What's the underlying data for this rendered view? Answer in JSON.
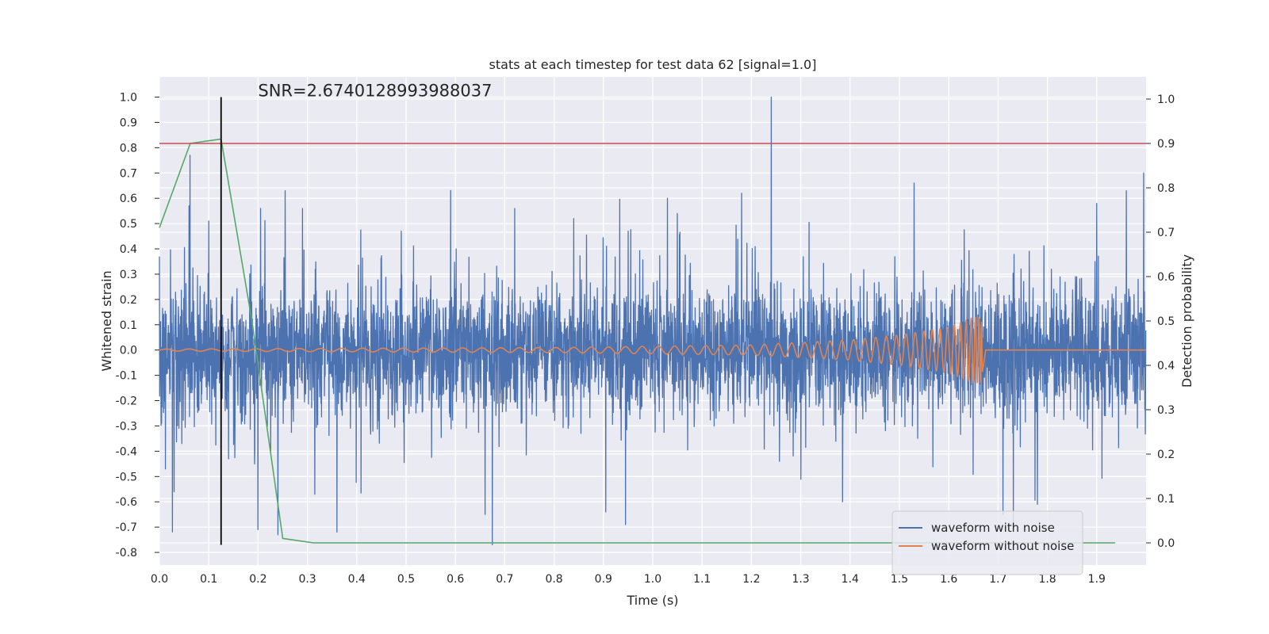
{
  "chart_data": {
    "type": "line",
    "title": "stats at each timestep for test data 62 [signal=1.0]",
    "xlabel": "Time (s)",
    "ylabel": "Whitened strain",
    "y2label": "Detection probability",
    "annotation": "SNR=2.6740128993988037",
    "xlim": [
      0.0,
      2.0
    ],
    "ylim": [
      -0.85,
      1.08
    ],
    "y2lim": [
      -0.05,
      1.05
    ],
    "xticks": [
      "0.0",
      "0.1",
      "0.2",
      "0.3",
      "0.4",
      "0.5",
      "0.6",
      "0.7",
      "0.8",
      "0.9",
      "1.0",
      "1.1",
      "1.2",
      "1.3",
      "1.4",
      "1.5",
      "1.6",
      "1.7",
      "1.8",
      "1.9"
    ],
    "yticks": [
      "-0.8",
      "-0.7",
      "-0.6",
      "-0.5",
      "-0.4",
      "-0.3",
      "-0.2",
      "-0.1",
      "0.0",
      "0.1",
      "0.2",
      "0.3",
      "0.4",
      "0.5",
      "0.6",
      "0.7",
      "0.8",
      "0.9",
      "1.0"
    ],
    "y2ticks": [
      "0.0",
      "0.1",
      "0.2",
      "0.3",
      "0.4",
      "0.5",
      "0.6",
      "0.7",
      "0.8",
      "0.9",
      "1.0"
    ],
    "grid": true,
    "legend_position": "bottom-right",
    "threshold": {
      "value": 0.9,
      "axis": "y2",
      "color": "#c44e52"
    },
    "marker_line": {
      "x": 0.125,
      "y_from": -0.77,
      "y_to": 1.0,
      "color": "#000000"
    },
    "series": [
      {
        "name": "waveform with noise",
        "axis": "y",
        "color": "#4c72b0",
        "kind": "noise",
        "sample_rate": 2048,
        "amplitude": 0.22,
        "clip": [
          -0.77,
          1.0
        ],
        "spikes": [
          [
            0.012,
            -0.47
          ],
          [
            0.03,
            -0.56
          ],
          [
            0.06,
            0.57
          ],
          [
            0.062,
            0.77
          ],
          [
            0.1,
            0.51
          ],
          [
            0.14,
            -0.43
          ],
          [
            0.205,
            0.56
          ],
          [
            0.24,
            -0.73
          ],
          [
            0.255,
            0.63
          ],
          [
            0.29,
            0.56
          ],
          [
            0.315,
            -0.57
          ],
          [
            0.36,
            -0.72
          ],
          [
            0.49,
            0.47
          ],
          [
            0.66,
            -0.65
          ],
          [
            0.675,
            -0.77
          ],
          [
            0.72,
            0.56
          ],
          [
            0.84,
            0.52
          ],
          [
            0.905,
            -0.64
          ],
          [
            0.945,
            -0.69
          ],
          [
            0.95,
            0.47
          ],
          [
            1.03,
            0.6
          ],
          [
            1.05,
            0.54
          ],
          [
            1.18,
            0.62
          ],
          [
            1.24,
            1.0
          ],
          [
            1.385,
            -0.6
          ],
          [
            1.53,
            0.66
          ],
          [
            1.71,
            -0.65
          ],
          [
            1.78,
            -0.61
          ],
          [
            1.9,
            0.58
          ],
          [
            1.96,
            0.63
          ],
          [
            1.995,
            0.7
          ]
        ]
      },
      {
        "name": "waveform without noise",
        "axis": "y",
        "color": "#dd8452",
        "kind": "chirp",
        "sample_rate": 2048,
        "merger_time": 1.665,
        "end_time": 1.675,
        "envelope": [
          [
            0.0,
            0.004
          ],
          [
            0.8,
            0.01
          ],
          [
            1.2,
            0.02
          ],
          [
            1.4,
            0.04
          ],
          [
            1.5,
            0.06
          ],
          [
            1.6,
            0.09
          ],
          [
            1.65,
            0.13
          ],
          [
            1.665,
            0.13
          ],
          [
            1.675,
            0.0
          ],
          [
            2.0,
            0.0
          ]
        ]
      },
      {
        "name": "detection probability",
        "axis": "y2",
        "color": "#55a868",
        "kind": "line",
        "x": [
          0.0,
          0.0625,
          0.125,
          0.1875,
          0.25,
          0.3125,
          0.375,
          0.4375,
          0.5,
          0.5625,
          0.625,
          0.6875,
          0.75,
          0.8125,
          0.875,
          0.9375,
          1.0,
          1.0625,
          1.125,
          1.1875,
          1.25,
          1.3125,
          1.375,
          1.4375,
          1.5,
          1.5625,
          1.625,
          1.6875,
          1.75,
          1.8125,
          1.875,
          1.9375
        ],
        "y": [
          0.71,
          0.9,
          0.91,
          0.5,
          0.01,
          0.0,
          0.0,
          0.0,
          0.0,
          0.0,
          0.0,
          0.0,
          0.0,
          0.0,
          0.0,
          0.0,
          0.0,
          0.0,
          0.0,
          0.0,
          0.0,
          0.0,
          0.0,
          0.0,
          0.0,
          0.0,
          0.0,
          0.0,
          0.0,
          0.0,
          0.0,
          0.0
        ]
      }
    ],
    "legend": [
      "waveform with noise",
      "waveform without noise"
    ],
    "colors": {
      "background": "#eaeaf2",
      "grid": "#ffffff",
      "text": "#262626",
      "legend_bg": "#eaeaf2",
      "legend_border": "#cccccc"
    }
  }
}
